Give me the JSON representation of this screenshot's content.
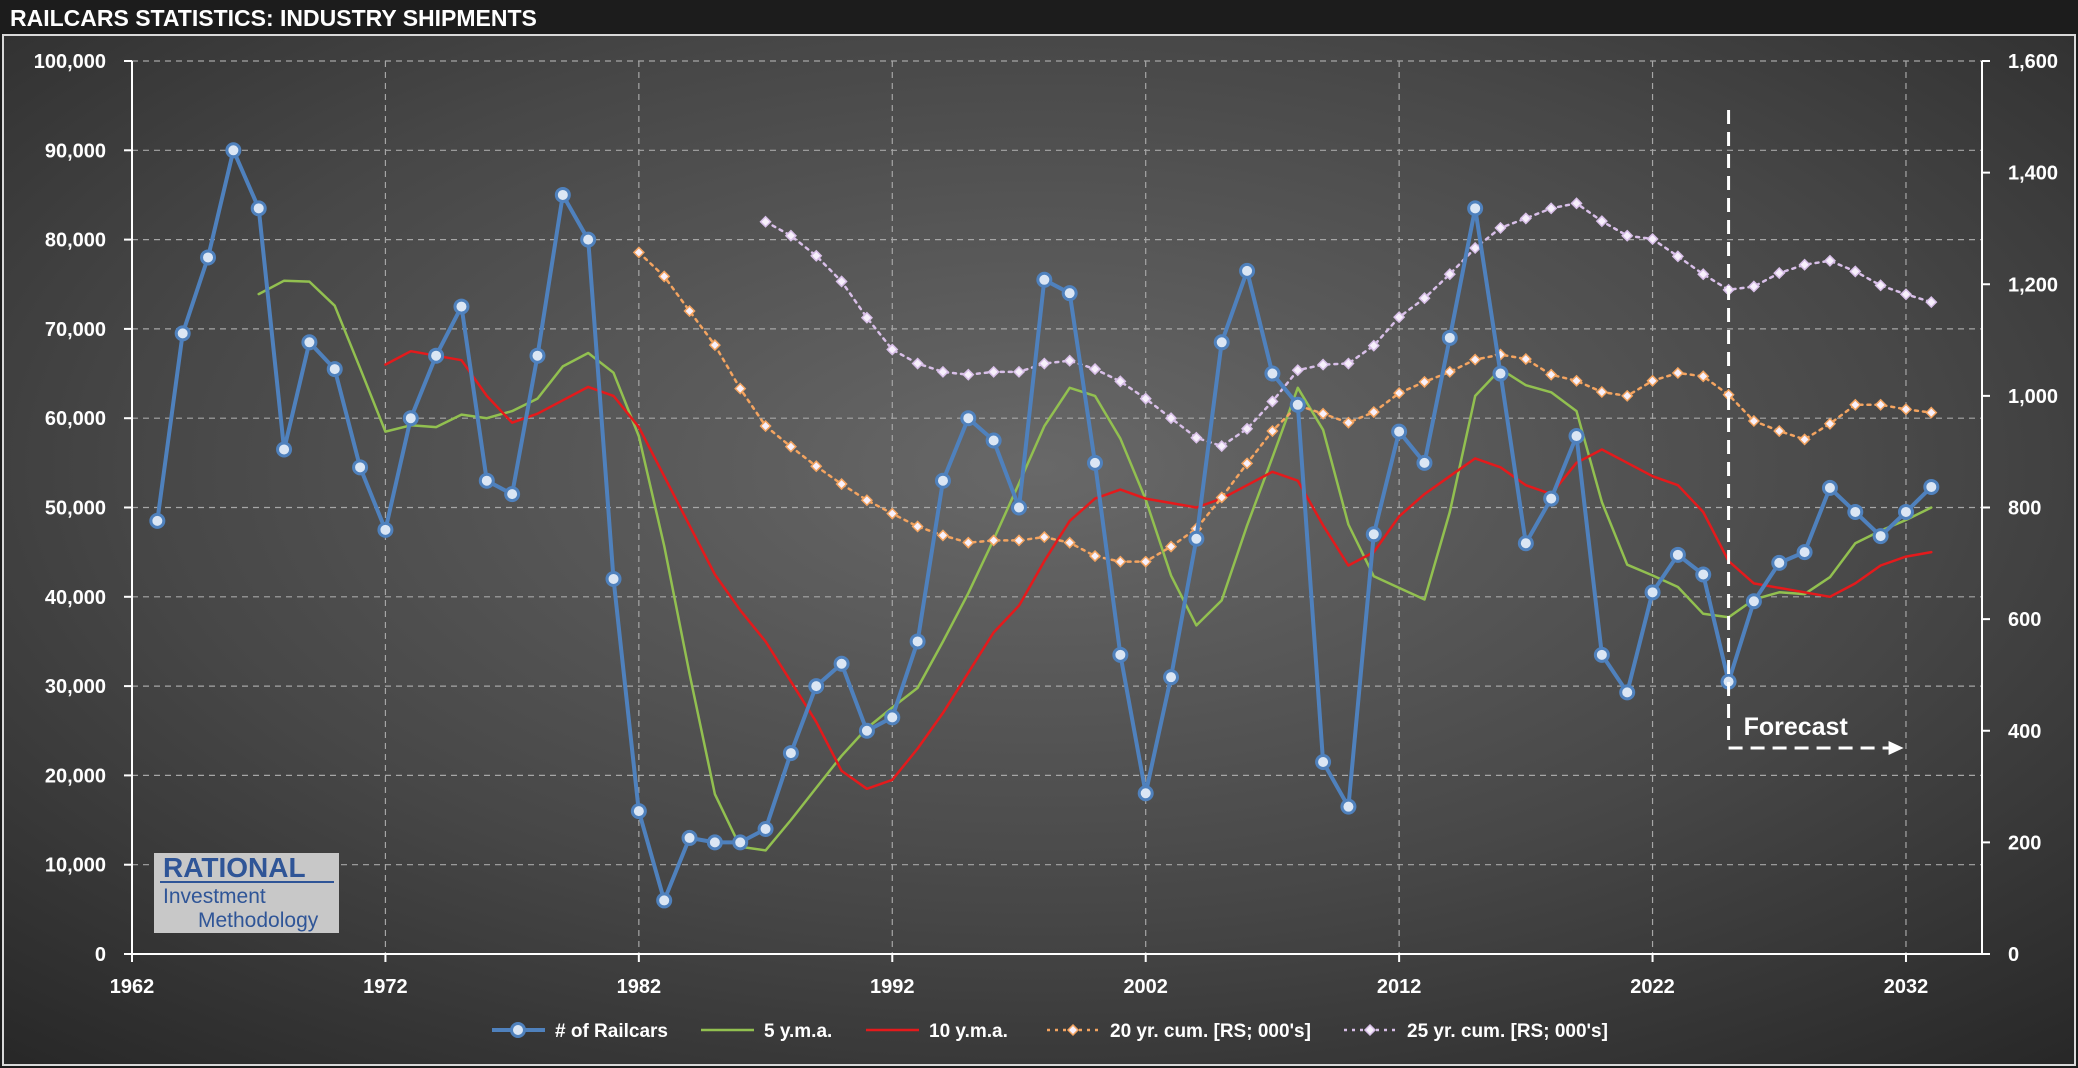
{
  "page": {
    "title": "RAILCARS STATISTICS: INDUSTRY SHIPMENTS"
  },
  "logo": {
    "line1": "RATIONAL",
    "line2": "Investment",
    "line3": "Methodology"
  },
  "annotation": {
    "forecast_label": "Forecast",
    "forecast_start_year": 2025
  },
  "colors": {
    "railcars": "#4f81bd",
    "ma5": "#92c050",
    "ma10": "#e41a1c",
    "cum20": "#f4a460",
    "cum25": "#d8bfe8"
  },
  "chart_data": {
    "type": "line",
    "title": "RAILCARS STATISTICS: INDUSTRY SHIPMENTS",
    "xlim": [
      1962,
      2035
    ],
    "x_ticks": [
      1962,
      1972,
      1982,
      1992,
      2002,
      2012,
      2022,
      2032
    ],
    "ylim_left": [
      0,
      100000
    ],
    "y_ticks_left": [
      "0",
      "10,000",
      "20,000",
      "30,000",
      "40,000",
      "50,000",
      "60,000",
      "70,000",
      "80,000",
      "90,000",
      "100,000"
    ],
    "ylim_right": [
      0,
      1600
    ],
    "y_ticks_right": [
      "0",
      "200",
      "400",
      "600",
      "800",
      "1,000",
      "1,200",
      "1,400",
      "1,600"
    ],
    "grid": true,
    "legend_position": "bottom",
    "series": [
      {
        "name": "# of Railcars",
        "axis": "left",
        "style": "line-circle",
        "x": [
          1963,
          1964,
          1965,
          1966,
          1967,
          1968,
          1969,
          1970,
          1971,
          1972,
          1973,
          1974,
          1975,
          1976,
          1977,
          1978,
          1979,
          1980,
          1981,
          1982,
          1983,
          1984,
          1985,
          1986,
          1987,
          1988,
          1989,
          1990,
          1991,
          1992,
          1993,
          1994,
          1995,
          1996,
          1997,
          1998,
          1999,
          2000,
          2001,
          2002,
          2003,
          2004,
          2005,
          2006,
          2007,
          2008,
          2009,
          2010,
          2011,
          2012,
          2013,
          2014,
          2015,
          2016,
          2017,
          2018,
          2019,
          2020,
          2021,
          2022,
          2023,
          2024,
          2025,
          2026,
          2027,
          2028,
          2029,
          2030,
          2031,
          2032,
          2033
        ],
        "values": [
          48500,
          69500,
          78000,
          90000,
          83500,
          56500,
          68500,
          65500,
          54500,
          47500,
          60000,
          67000,
          72500,
          53000,
          51500,
          67000,
          85000,
          80000,
          42000,
          16000,
          6000,
          13000,
          12500,
          12500,
          14000,
          22500,
          30000,
          32500,
          25000,
          26500,
          35000,
          53000,
          60000,
          57500,
          50000,
          75500,
          74000,
          55000,
          33500,
          18000,
          31000,
          46500,
          68500,
          76500,
          65000,
          61500,
          21500,
          16500,
          47000,
          58500,
          55000,
          69000,
          83500,
          65000,
          46000,
          51000,
          58000,
          33500,
          29300,
          40500,
          44700,
          42500,
          30500,
          39500,
          43800,
          45000,
          52200,
          49500,
          46800,
          49500,
          52300
        ]
      },
      {
        "name": "5 y.m.a.",
        "axis": "left",
        "style": "line",
        "x": [
          1967,
          1968,
          1969,
          1970,
          1971,
          1972,
          1973,
          1974,
          1975,
          1976,
          1977,
          1978,
          1979,
          1980,
          1981,
          1982,
          1983,
          1984,
          1985,
          1986,
          1987,
          1988,
          1989,
          1990,
          1991,
          1992,
          1993,
          1994,
          1995,
          1996,
          1997,
          1998,
          1999,
          2000,
          2001,
          2002,
          2003,
          2004,
          2005,
          2006,
          2007,
          2008,
          2009,
          2010,
          2011,
          2012,
          2013,
          2014,
          2015,
          2016,
          2017,
          2018,
          2019,
          2020,
          2021,
          2022,
          2023,
          2024,
          2025,
          2026,
          2027,
          2028,
          2029,
          2030,
          2031,
          2032,
          2033
        ],
        "values": [
          73900,
          75400,
          75300,
          72600,
          65600,
          58500,
          59200,
          59000,
          60400,
          60000,
          60800,
          62200,
          65800,
          67300,
          65100,
          58000,
          45700,
          31400,
          17900,
          12000,
          11600,
          15000,
          18600,
          22200,
          25300,
          27600,
          29800,
          35000,
          40400,
          46400,
          52700,
          59100,
          63400,
          62500,
          57700,
          50900,
          42400,
          36800,
          39600,
          48000,
          55600,
          63400,
          58700,
          48100,
          42300,
          41000,
          39700,
          49500,
          62500,
          65500,
          63700,
          62900,
          60800,
          50600,
          43600,
          42400,
          41100,
          38100,
          37700,
          39700,
          40500,
          40300,
          42200,
          46000,
          47400,
          48600,
          50000
        ]
      },
      {
        "name": "10 y.m.a.",
        "axis": "left",
        "style": "line",
        "x": [
          1972,
          1973,
          1974,
          1975,
          1976,
          1977,
          1978,
          1979,
          1980,
          1981,
          1982,
          1983,
          1984,
          1985,
          1986,
          1987,
          1988,
          1989,
          1990,
          1991,
          1992,
          1993,
          1994,
          1995,
          1996,
          1997,
          1998,
          1999,
          2000,
          2001,
          2002,
          2003,
          2004,
          2005,
          2006,
          2007,
          2008,
          2009,
          2010,
          2011,
          2012,
          2013,
          2014,
          2015,
          2016,
          2017,
          2018,
          2019,
          2020,
          2021,
          2022,
          2023,
          2024,
          2025,
          2026,
          2027,
          2028,
          2029,
          2030,
          2031,
          2032,
          2033
        ],
        "values": [
          66000,
          67500,
          67000,
          66500,
          62500,
          59500,
          60500,
          62000,
          63500,
          62500,
          59000,
          53500,
          48000,
          42500,
          38500,
          35000,
          30500,
          26000,
          20500,
          18500,
          19500,
          23000,
          27000,
          31500,
          36000,
          39000,
          44000,
          48500,
          51000,
          52000,
          51000,
          50500,
          50000,
          51000,
          52500,
          54000,
          53000,
          48000,
          43500,
          45000,
          49000,
          51500,
          53500,
          55500,
          54500,
          52500,
          51500,
          55000,
          56500,
          55000,
          53500,
          52500,
          49500,
          44000,
          41500,
          41000,
          40500,
          40000,
          41500,
          43500,
          44500,
          45000
        ]
      },
      {
        "name": "20 yr. cum. [RS; 000's]",
        "axis": "right",
        "style": "dotted-diamond",
        "x": [
          1982,
          1983,
          1984,
          1985,
          1986,
          1987,
          1988,
          1989,
          1990,
          1991,
          1992,
          1993,
          1994,
          1995,
          1996,
          1997,
          1998,
          1999,
          2000,
          2001,
          2002,
          2003,
          2004,
          2005,
          2006,
          2007,
          2008,
          2009,
          2010,
          2011,
          2012,
          2013,
          2014,
          2015,
          2016,
          2017,
          2018,
          2019,
          2020,
          2021,
          2022,
          2023,
          2024,
          2025,
          2026,
          2027,
          2028,
          2029,
          2030,
          2031,
          2032,
          2033
        ],
        "values": [
          1257,
          1214,
          1152,
          1091,
          1013,
          946,
          909,
          874,
          842,
          813,
          789,
          766,
          750,
          737,
          741,
          741,
          747,
          737,
          713,
          703,
          703,
          730,
          762,
          818,
          879,
          937,
          983,
          968,
          952,
          971,
          1005,
          1025,
          1043,
          1065,
          1074,
          1066,
          1038,
          1027,
          1007,
          1000,
          1027,
          1041,
          1035,
          1002,
          955,
          937,
          922,
          950,
          984,
          984,
          976,
          970
        ]
      },
      {
        "name": "25 yr. cum. [RS; 000's]",
        "axis": "right",
        "style": "dotted-diamond",
        "x": [
          1987,
          1988,
          1989,
          1990,
          1991,
          1992,
          1993,
          1994,
          1995,
          1996,
          1997,
          1998,
          1999,
          2000,
          2001,
          2002,
          2003,
          2004,
          2005,
          2006,
          2007,
          2008,
          2009,
          2010,
          2011,
          2012,
          2013,
          2014,
          2015,
          2016,
          2017,
          2018,
          2019,
          2020,
          2021,
          2022,
          2023,
          2024,
          2025,
          2026,
          2027,
          2028,
          2029,
          2030,
          2031,
          2032,
          2033
        ],
        "values": [
          1312,
          1287,
          1251,
          1205,
          1140,
          1083,
          1058,
          1043,
          1038,
          1043,
          1043,
          1058,
          1063,
          1048,
          1026,
          995,
          960,
          925,
          910,
          941,
          990,
          1046,
          1056,
          1058,
          1090,
          1141,
          1175,
          1218,
          1265,
          1301,
          1318,
          1336,
          1345,
          1313,
          1287,
          1281,
          1250,
          1218,
          1190,
          1196,
          1220,
          1235,
          1242,
          1223,
          1198,
          1182,
          1168
        ]
      }
    ]
  }
}
